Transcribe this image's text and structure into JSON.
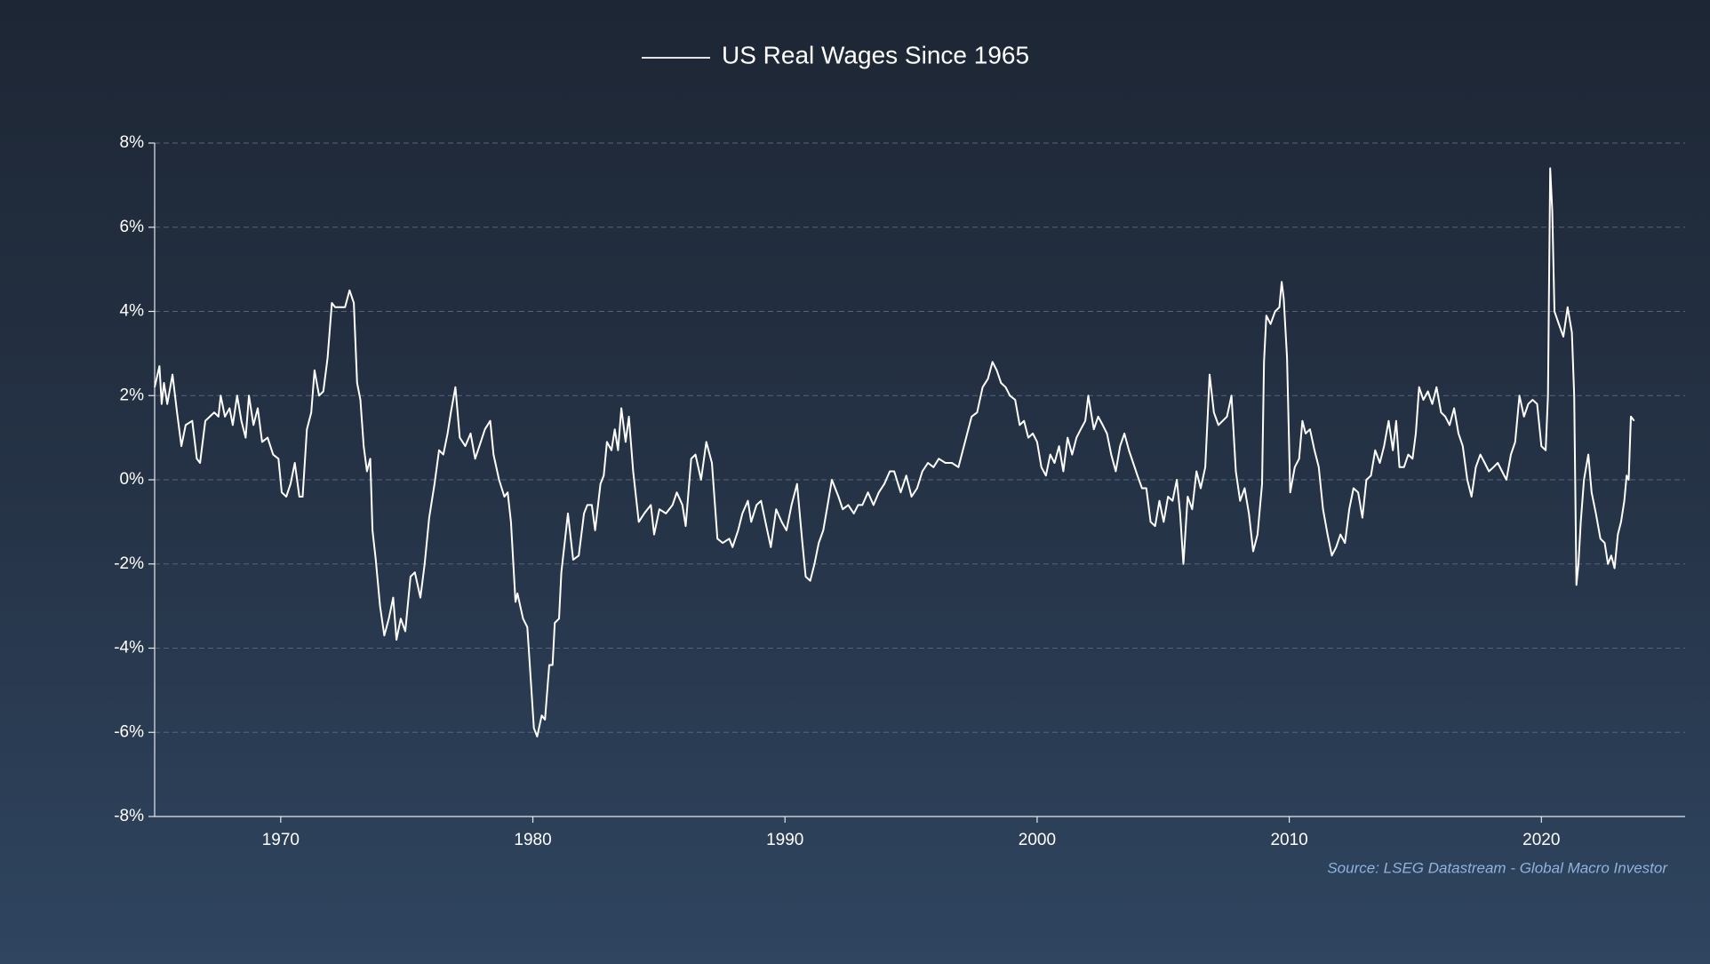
{
  "chart_data": {
    "type": "line",
    "source": "Source: LSEG Datastream - Global Macro Investor",
    "xlim": [
      1965,
      2025.7
    ],
    "xticks": [
      1970,
      1980,
      1990,
      2000,
      2010,
      2020
    ],
    "ylim": [
      -8,
      8
    ],
    "yticks": [
      {
        "value": -8,
        "label": "-8%"
      },
      {
        "value": -6,
        "label": "-6%"
      },
      {
        "value": -4,
        "label": "-4%"
      },
      {
        "value": -2,
        "label": "-2%"
      },
      {
        "value": 0,
        "label": "0%"
      },
      {
        "value": 2,
        "label": "2%"
      },
      {
        "value": 4,
        "label": "4%"
      },
      {
        "value": 6,
        "label": "6%"
      },
      {
        "value": 8,
        "label": "8%"
      }
    ],
    "grid": true,
    "x": [
      1965.0,
      1965.19,
      1965.28,
      1965.37,
      1965.5,
      1965.71,
      1965.89,
      1966.06,
      1966.23,
      1966.49,
      1966.67,
      1966.8,
      1967.01,
      1967.19,
      1967.36,
      1967.53,
      1967.62,
      1967.79,
      1967.97,
      1968.1,
      1968.27,
      1968.44,
      1968.61,
      1968.74,
      1968.92,
      1969.09,
      1969.26,
      1969.48,
      1969.7,
      1969.91,
      1970.04,
      1970.22,
      1970.39,
      1970.56,
      1970.74,
      1970.87,
      1971.04,
      1971.21,
      1971.34,
      1971.52,
      1971.69,
      1971.86,
      1972.03,
      1972.16,
      1972.38,
      1972.55,
      1972.73,
      1972.9,
      1973.03,
      1973.16,
      1973.29,
      1973.42,
      1973.55,
      1973.64,
      1973.77,
      1973.94,
      1974.11,
      1974.29,
      1974.46,
      1974.59,
      1974.76,
      1974.94,
      1975.15,
      1975.32,
      1975.54,
      1975.71,
      1975.89,
      1976.1,
      1976.28,
      1976.45,
      1976.62,
      1976.75,
      1976.93,
      1977.1,
      1977.32,
      1977.53,
      1977.71,
      1977.88,
      1978.1,
      1978.31,
      1978.44,
      1978.66,
      1978.87,
      1979.0,
      1979.13,
      1979.31,
      1979.39,
      1979.61,
      1979.78,
      1979.87,
      1980.04,
      1980.17,
      1980.35,
      1980.48,
      1980.65,
      1980.78,
      1980.87,
      1981.04,
      1981.13,
      1981.26,
      1981.39,
      1981.6,
      1981.82,
      1982.03,
      1982.16,
      1982.34,
      1982.47,
      1982.68,
      1982.81,
      1982.94,
      1983.12,
      1983.25,
      1983.38,
      1983.51,
      1983.68,
      1983.81,
      1983.98,
      1984.2,
      1984.42,
      1984.68,
      1984.81,
      1985.02,
      1985.28,
      1985.54,
      1985.71,
      1985.93,
      1986.06,
      1986.28,
      1986.45,
      1986.67,
      1986.88,
      1987.1,
      1987.32,
      1987.53,
      1987.79,
      1987.92,
      1988.14,
      1988.31,
      1988.53,
      1988.66,
      1988.87,
      1989.05,
      1989.26,
      1989.44,
      1989.65,
      1989.87,
      1990.06,
      1990.26,
      1990.48,
      1990.69,
      1990.82,
      1991.0,
      1991.17,
      1991.34,
      1991.52,
      1991.69,
      1991.86,
      1992.12,
      1992.29,
      1992.51,
      1992.73,
      1992.9,
      1993.07,
      1993.29,
      1993.51,
      1993.72,
      1993.94,
      1994.16,
      1994.33,
      1994.59,
      1994.81,
      1995.02,
      1995.24,
      1995.45,
      1995.67,
      1995.89,
      1996.1,
      1996.36,
      1996.62,
      1996.88,
      1997.14,
      1997.4,
      1997.62,
      1997.84,
      1998.05,
      1998.23,
      1998.4,
      1998.57,
      1998.75,
      1998.92,
      1999.13,
      1999.31,
      1999.48,
      1999.65,
      1999.83,
      2000.0,
      2000.17,
      2000.35,
      2000.52,
      2000.69,
      2000.87,
      2001.04,
      2001.21,
      2001.39,
      2001.56,
      2001.73,
      2001.91,
      2002.03,
      2002.25,
      2002.42,
      2002.6,
      2002.77,
      2002.94,
      2003.12,
      2003.29,
      2003.46,
      2003.64,
      2003.81,
      2003.98,
      2004.16,
      2004.33,
      2004.5,
      2004.68,
      2004.85,
      2005.02,
      2005.19,
      2005.37,
      2005.54,
      2005.67,
      2005.8,
      2005.97,
      2006.15,
      2006.32,
      2006.49,
      2006.67,
      2006.84,
      2007.01,
      2007.19,
      2007.36,
      2007.53,
      2007.71,
      2007.88,
      2008.05,
      2008.23,
      2008.4,
      2008.57,
      2008.74,
      2008.92,
      2009.0,
      2009.09,
      2009.26,
      2009.44,
      2009.61,
      2009.7,
      2009.78,
      2009.91,
      2010.04,
      2010.22,
      2010.39,
      2010.52,
      2010.65,
      2010.82,
      2011.0,
      2011.17,
      2011.34,
      2011.52,
      2011.69,
      2011.86,
      2012.03,
      2012.21,
      2012.38,
      2012.55,
      2012.73,
      2012.9,
      2013.06,
      2013.24,
      2013.41,
      2013.59,
      2013.76,
      2013.94,
      2014.11,
      2014.24,
      2014.37,
      2014.55,
      2014.72,
      2014.89,
      2015.02,
      2015.15,
      2015.32,
      2015.5,
      2015.67,
      2015.84,
      2016.02,
      2016.19,
      2016.36,
      2016.54,
      2016.71,
      2016.88,
      2017.06,
      2017.23,
      2017.4,
      2017.58,
      2017.75,
      2017.92,
      2018.1,
      2018.27,
      2018.44,
      2018.61,
      2018.79,
      2018.96,
      2019.13,
      2019.31,
      2019.48,
      2019.65,
      2019.83,
      2020.0,
      2020.17,
      2020.26,
      2020.35,
      2020.43,
      2020.52,
      2020.69,
      2020.87,
      2021.04,
      2021.21,
      2021.3,
      2021.39,
      2021.47,
      2021.56,
      2021.69,
      2021.86,
      2021.99,
      2022.16,
      2022.34,
      2022.51,
      2022.64,
      2022.77,
      2022.9,
      2023.03,
      2023.16,
      2023.29,
      2023.38,
      2023.46,
      2023.55,
      2023.68
    ],
    "series": [
      {
        "name": "US Real Wages Since 1965",
        "color": "#ffffff",
        "values": [
          2.2,
          2.7,
          1.8,
          2.3,
          1.8,
          2.5,
          1.6,
          0.8,
          1.3,
          1.4,
          0.5,
          0.4,
          1.4,
          1.5,
          1.6,
          1.5,
          2.0,
          1.5,
          1.7,
          1.3,
          2.0,
          1.4,
          1.0,
          2.0,
          1.3,
          1.7,
          0.9,
          1.0,
          0.6,
          0.5,
          -0.3,
          -0.4,
          -0.1,
          0.4,
          -0.4,
          -0.4,
          1.2,
          1.6,
          2.6,
          2.0,
          2.1,
          2.9,
          4.2,
          4.1,
          4.1,
          4.1,
          4.5,
          4.2,
          2.3,
          1.9,
          0.8,
          0.2,
          0.5,
          -1.2,
          -1.9,
          -3.0,
          -3.7,
          -3.3,
          -2.8,
          -3.8,
          -3.3,
          -3.6,
          -2.3,
          -2.2,
          -2.8,
          -2.0,
          -0.9,
          -0.1,
          0.7,
          0.6,
          1.1,
          1.6,
          2.2,
          1.0,
          0.8,
          1.1,
          0.5,
          0.8,
          1.2,
          1.4,
          0.6,
          0.0,
          -0.4,
          -0.3,
          -1.0,
          -2.9,
          -2.7,
          -3.3,
          -3.5,
          -4.3,
          -5.9,
          -6.1,
          -5.6,
          -5.7,
          -4.4,
          -4.4,
          -3.4,
          -3.3,
          -2.2,
          -1.5,
          -0.8,
          -1.9,
          -1.8,
          -0.8,
          -0.6,
          -0.6,
          -1.2,
          -0.1,
          0.1,
          0.9,
          0.7,
          1.2,
          0.7,
          1.7,
          0.9,
          1.5,
          0.2,
          -1.0,
          -0.8,
          -0.6,
          -1.3,
          -0.7,
          -0.8,
          -0.6,
          -0.3,
          -0.6,
          -1.1,
          0.5,
          0.6,
          0.0,
          0.9,
          0.4,
          -1.4,
          -1.5,
          -1.4,
          -1.6,
          -1.2,
          -0.8,
          -0.5,
          -1.0,
          -0.6,
          -0.5,
          -1.1,
          -1.6,
          -0.7,
          -1.0,
          -1.2,
          -0.6,
          -0.1,
          -1.5,
          -2.3,
          -2.4,
          -2.0,
          -1.5,
          -1.2,
          -0.6,
          0.0,
          -0.4,
          -0.7,
          -0.6,
          -0.8,
          -0.6,
          -0.6,
          -0.3,
          -0.6,
          -0.3,
          -0.1,
          0.2,
          0.2,
          -0.3,
          0.1,
          -0.4,
          -0.2,
          0.2,
          0.4,
          0.3,
          0.5,
          0.4,
          0.4,
          0.3,
          0.9,
          1.5,
          1.6,
          2.2,
          2.4,
          2.8,
          2.6,
          2.3,
          2.2,
          2.0,
          1.9,
          1.3,
          1.4,
          1.0,
          1.1,
          0.9,
          0.3,
          0.1,
          0.6,
          0.4,
          0.8,
          0.2,
          1.0,
          0.6,
          1.0,
          1.2,
          1.4,
          2.0,
          1.2,
          1.5,
          1.3,
          1.1,
          0.6,
          0.2,
          0.8,
          1.1,
          0.7,
          0.4,
          0.1,
          -0.2,
          -0.2,
          -1.0,
          -1.1,
          -0.5,
          -1.0,
          -0.4,
          -0.5,
          0.0,
          -0.8,
          -2.0,
          -0.4,
          -0.7,
          0.2,
          -0.2,
          0.3,
          2.5,
          1.6,
          1.3,
          1.4,
          1.5,
          2.0,
          0.2,
          -0.5,
          -0.2,
          -0.8,
          -1.7,
          -1.3,
          -0.1,
          2.8,
          3.9,
          3.7,
          4.0,
          4.1,
          4.7,
          4.3,
          2.9,
          -0.3,
          0.3,
          0.5,
          1.4,
          1.1,
          1.2,
          0.7,
          0.3,
          -0.7,
          -1.3,
          -1.8,
          -1.6,
          -1.3,
          -1.5,
          -0.7,
          -0.2,
          -0.3,
          -0.9,
          0.0,
          0.1,
          0.7,
          0.4,
          0.8,
          1.4,
          0.7,
          1.4,
          0.3,
          0.3,
          0.6,
          0.5,
          1.1,
          2.2,
          1.9,
          2.1,
          1.8,
          2.2,
          1.6,
          1.5,
          1.3,
          1.7,
          1.1,
          0.8,
          0.0,
          -0.4,
          0.3,
          0.6,
          0.4,
          0.2,
          0.3,
          0.4,
          0.2,
          0.0,
          0.6,
          0.9,
          2.0,
          1.5,
          1.8,
          1.9,
          1.8,
          0.8,
          0.7,
          2.0,
          7.4,
          6.4,
          4.0,
          3.7,
          3.4,
          4.1,
          3.5,
          2.0,
          -2.5,
          -2.0,
          -1.0,
          0.0,
          0.6,
          -0.3,
          -0.8,
          -1.4,
          -1.5,
          -2.0,
          -1.8,
          -2.1,
          -1.3,
          -1.0,
          -0.5,
          0.1,
          0.0,
          1.5,
          1.4
        ]
      }
    ]
  }
}
